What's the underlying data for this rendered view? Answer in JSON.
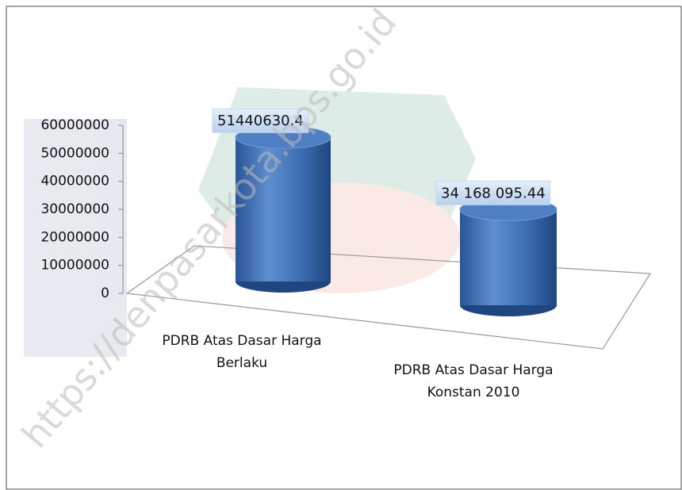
{
  "chart_data": {
    "type": "cylinder",
    "categories": [
      "PDRB Atas Dasar Harga Berlaku",
      "PDRB Atas Dasar Harga Konstan 2010"
    ],
    "values": [
      51440630.4,
      34168095.44
    ],
    "value_labels": [
      "51440630.4",
      "34 168 095.44"
    ],
    "color": "#3a6cb0",
    "ylim": [
      0,
      60000000
    ],
    "yticks": [
      0,
      10000000,
      20000000,
      30000000,
      40000000,
      50000000,
      60000000
    ],
    "watermark": "https://denpasarkota.bps.go.id"
  }
}
